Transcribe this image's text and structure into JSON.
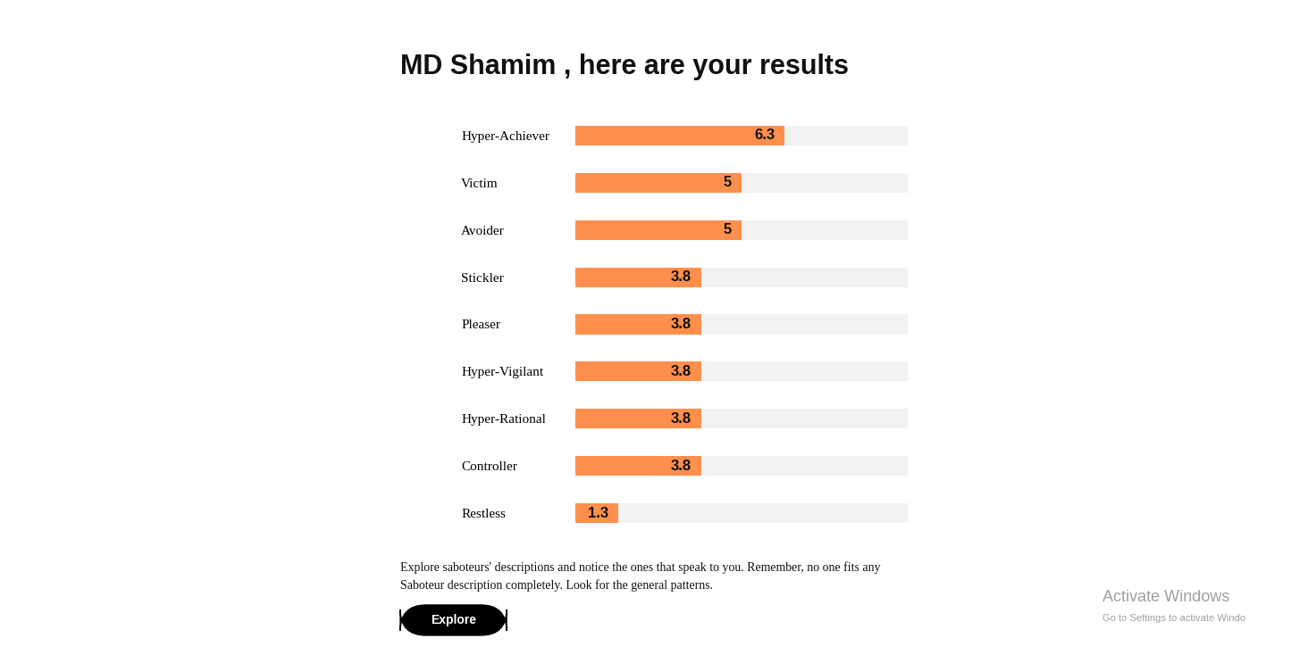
{
  "chart_data": {
    "type": "bar",
    "orientation": "horizontal",
    "title": "MD Shamim , here are your results",
    "categories": [
      "Hyper-Achiever",
      "Victim",
      "Avoider",
      "Stickler",
      "Pleaser",
      "Hyper-Vigilant",
      "Hyper-Rational",
      "Controller",
      "Restless"
    ],
    "values": [
      6.3,
      5,
      5,
      3.8,
      3.8,
      3.8,
      3.8,
      3.8,
      1.3
    ],
    "color": "#ff8f4c",
    "xlim": [
      0,
      10
    ],
    "data_labels": true,
    "tick_labels": "y"
  },
  "footer": {
    "text_lines": [
      "Explore saboteurs' descriptions and notice the ones that speak to you. Remember, no one fits any",
      "Saboteur description completely. Look for the general patterns."
    ],
    "button": "Explore"
  },
  "watermark": [
    "Activate Windows",
    "Go to Settings to activate Windo"
  ]
}
